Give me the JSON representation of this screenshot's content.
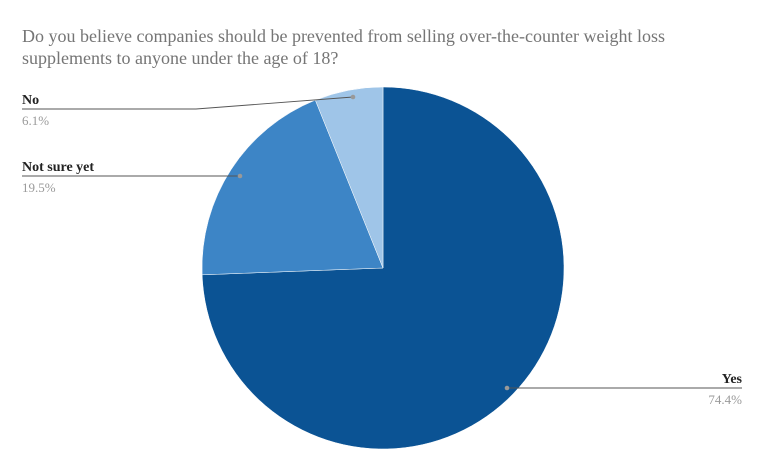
{
  "chart_data": {
    "type": "pie",
    "title": "Do you believe companies should be prevented from selling over-the-counter weight loss\nsupplements  to anyone under the age of 18?",
    "categories": [
      "Yes",
      "Not sure yet",
      "No"
    ],
    "values": [
      74.4,
      19.5,
      6.1
    ],
    "value_labels": [
      "74.4%",
      "19.5%",
      "6.1%"
    ],
    "colors": [
      "#0b5394",
      "#3d85c6",
      "#9fc5e8"
    ],
    "start": "12 o'clock",
    "direction": "clockwise",
    "label_style": "outside with leader lines"
  }
}
